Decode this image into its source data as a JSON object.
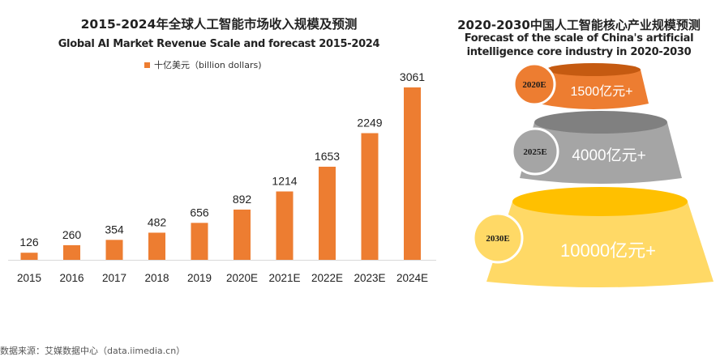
{
  "chart_data": [
    {
      "type": "bar",
      "title": "2015-2024年全球人工智能市场收入规模及预测",
      "subtitle": "Global AI Market Revenue Scale and forecast 2015-2024",
      "legend": [
        {
          "name": "十亿美元（billion dollars)",
          "color": "#ED7D31"
        }
      ],
      "legend_position": "top-center",
      "categories": [
        "2015",
        "2016",
        "2017",
        "2018",
        "2019",
        "2020E",
        "2021E",
        "2022E",
        "2023E",
        "2024E"
      ],
      "values": [
        126,
        260,
        354,
        482,
        656,
        892,
        1214,
        1653,
        2249,
        3061
      ],
      "data_labels": [
        "126",
        "260",
        "354",
        "482",
        "656",
        "892",
        "1214",
        "1653",
        "2249",
        "3061"
      ],
      "xlabel": "",
      "ylabel": "",
      "ylim": [
        0,
        3061
      ],
      "grid": false,
      "bar_color": "#ED7D31"
    },
    {
      "type": "other",
      "title": "2020-2030中国人工智能核心产业规模预测",
      "subtitle_lines": [
        "Forecast of the scale of China's artificial",
        "intelligence core industry in 2020-2030"
      ],
      "stages": [
        {
          "year": "2020E",
          "value_label": "1500亿元+",
          "value": 1500,
          "color": "#ED7D31",
          "top_color": "#C55A11"
        },
        {
          "year": "2025E",
          "value_label": "4000亿元+",
          "value": 4000,
          "color": "#A5A5A5",
          "top_color": "#808080"
        },
        {
          "year": "2030E",
          "value_label": "10000亿元+",
          "value": 10000,
          "color": "#FFD966",
          "top_color": "#FFC000"
        }
      ]
    }
  ],
  "source": "数据来源：艾媒数据中心（data.iimedia.cn）"
}
